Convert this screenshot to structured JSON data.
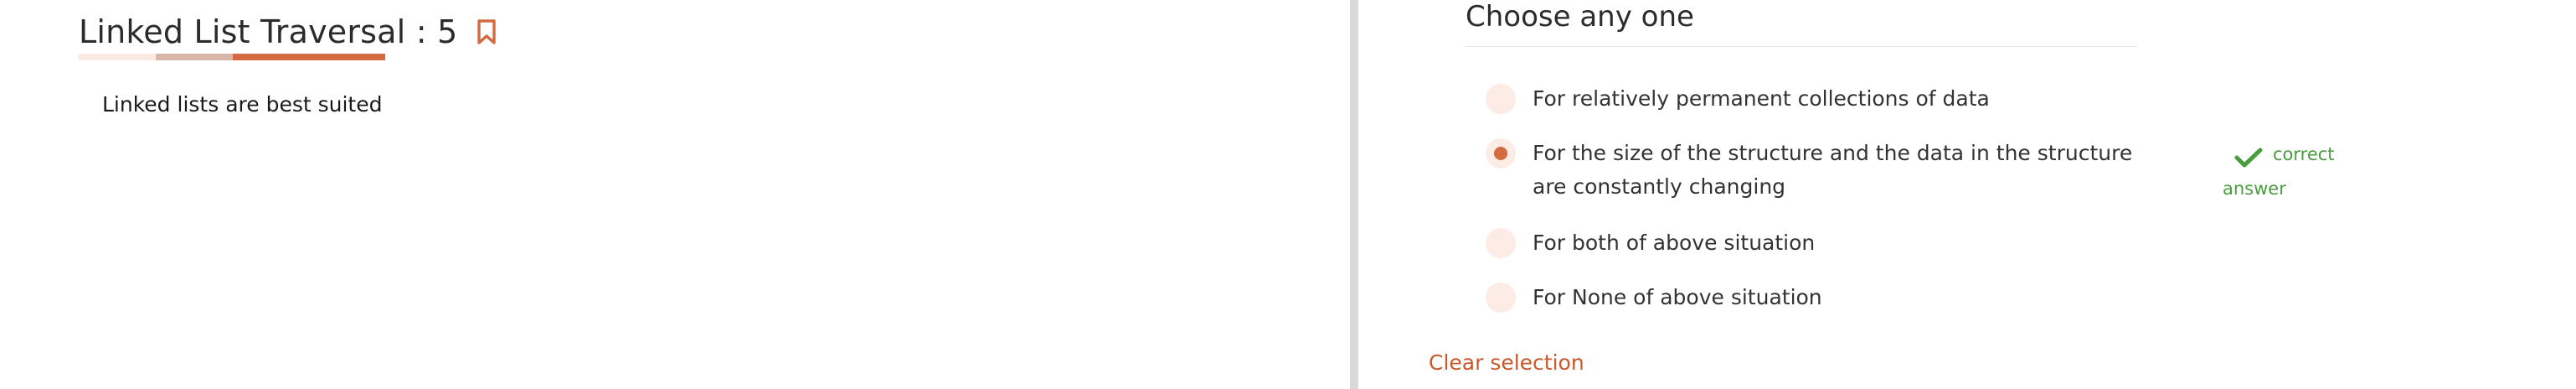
{
  "question": {
    "title": "Linked List Traversal : 5",
    "text": "Linked lists are best suited"
  },
  "answers": {
    "header": "Choose any one",
    "options": [
      {
        "label": "For relatively permanent collections of data",
        "selected": false
      },
      {
        "label": "For the size of the structure and the data in the structure are constantly changing",
        "selected": true
      },
      {
        "label": "For both of above situation",
        "selected": false
      },
      {
        "label": "For None of above situation",
        "selected": false
      }
    ],
    "feedback": {
      "line1": "correct",
      "line2": "answer",
      "icon": "checkmark-icon"
    },
    "clear_label": "Clear selection"
  },
  "colors": {
    "accent": "#d36a40",
    "correct": "#4a9d3f",
    "radio_bg": "#fcece5"
  },
  "icons": {
    "bookmark": "bookmark-icon"
  }
}
